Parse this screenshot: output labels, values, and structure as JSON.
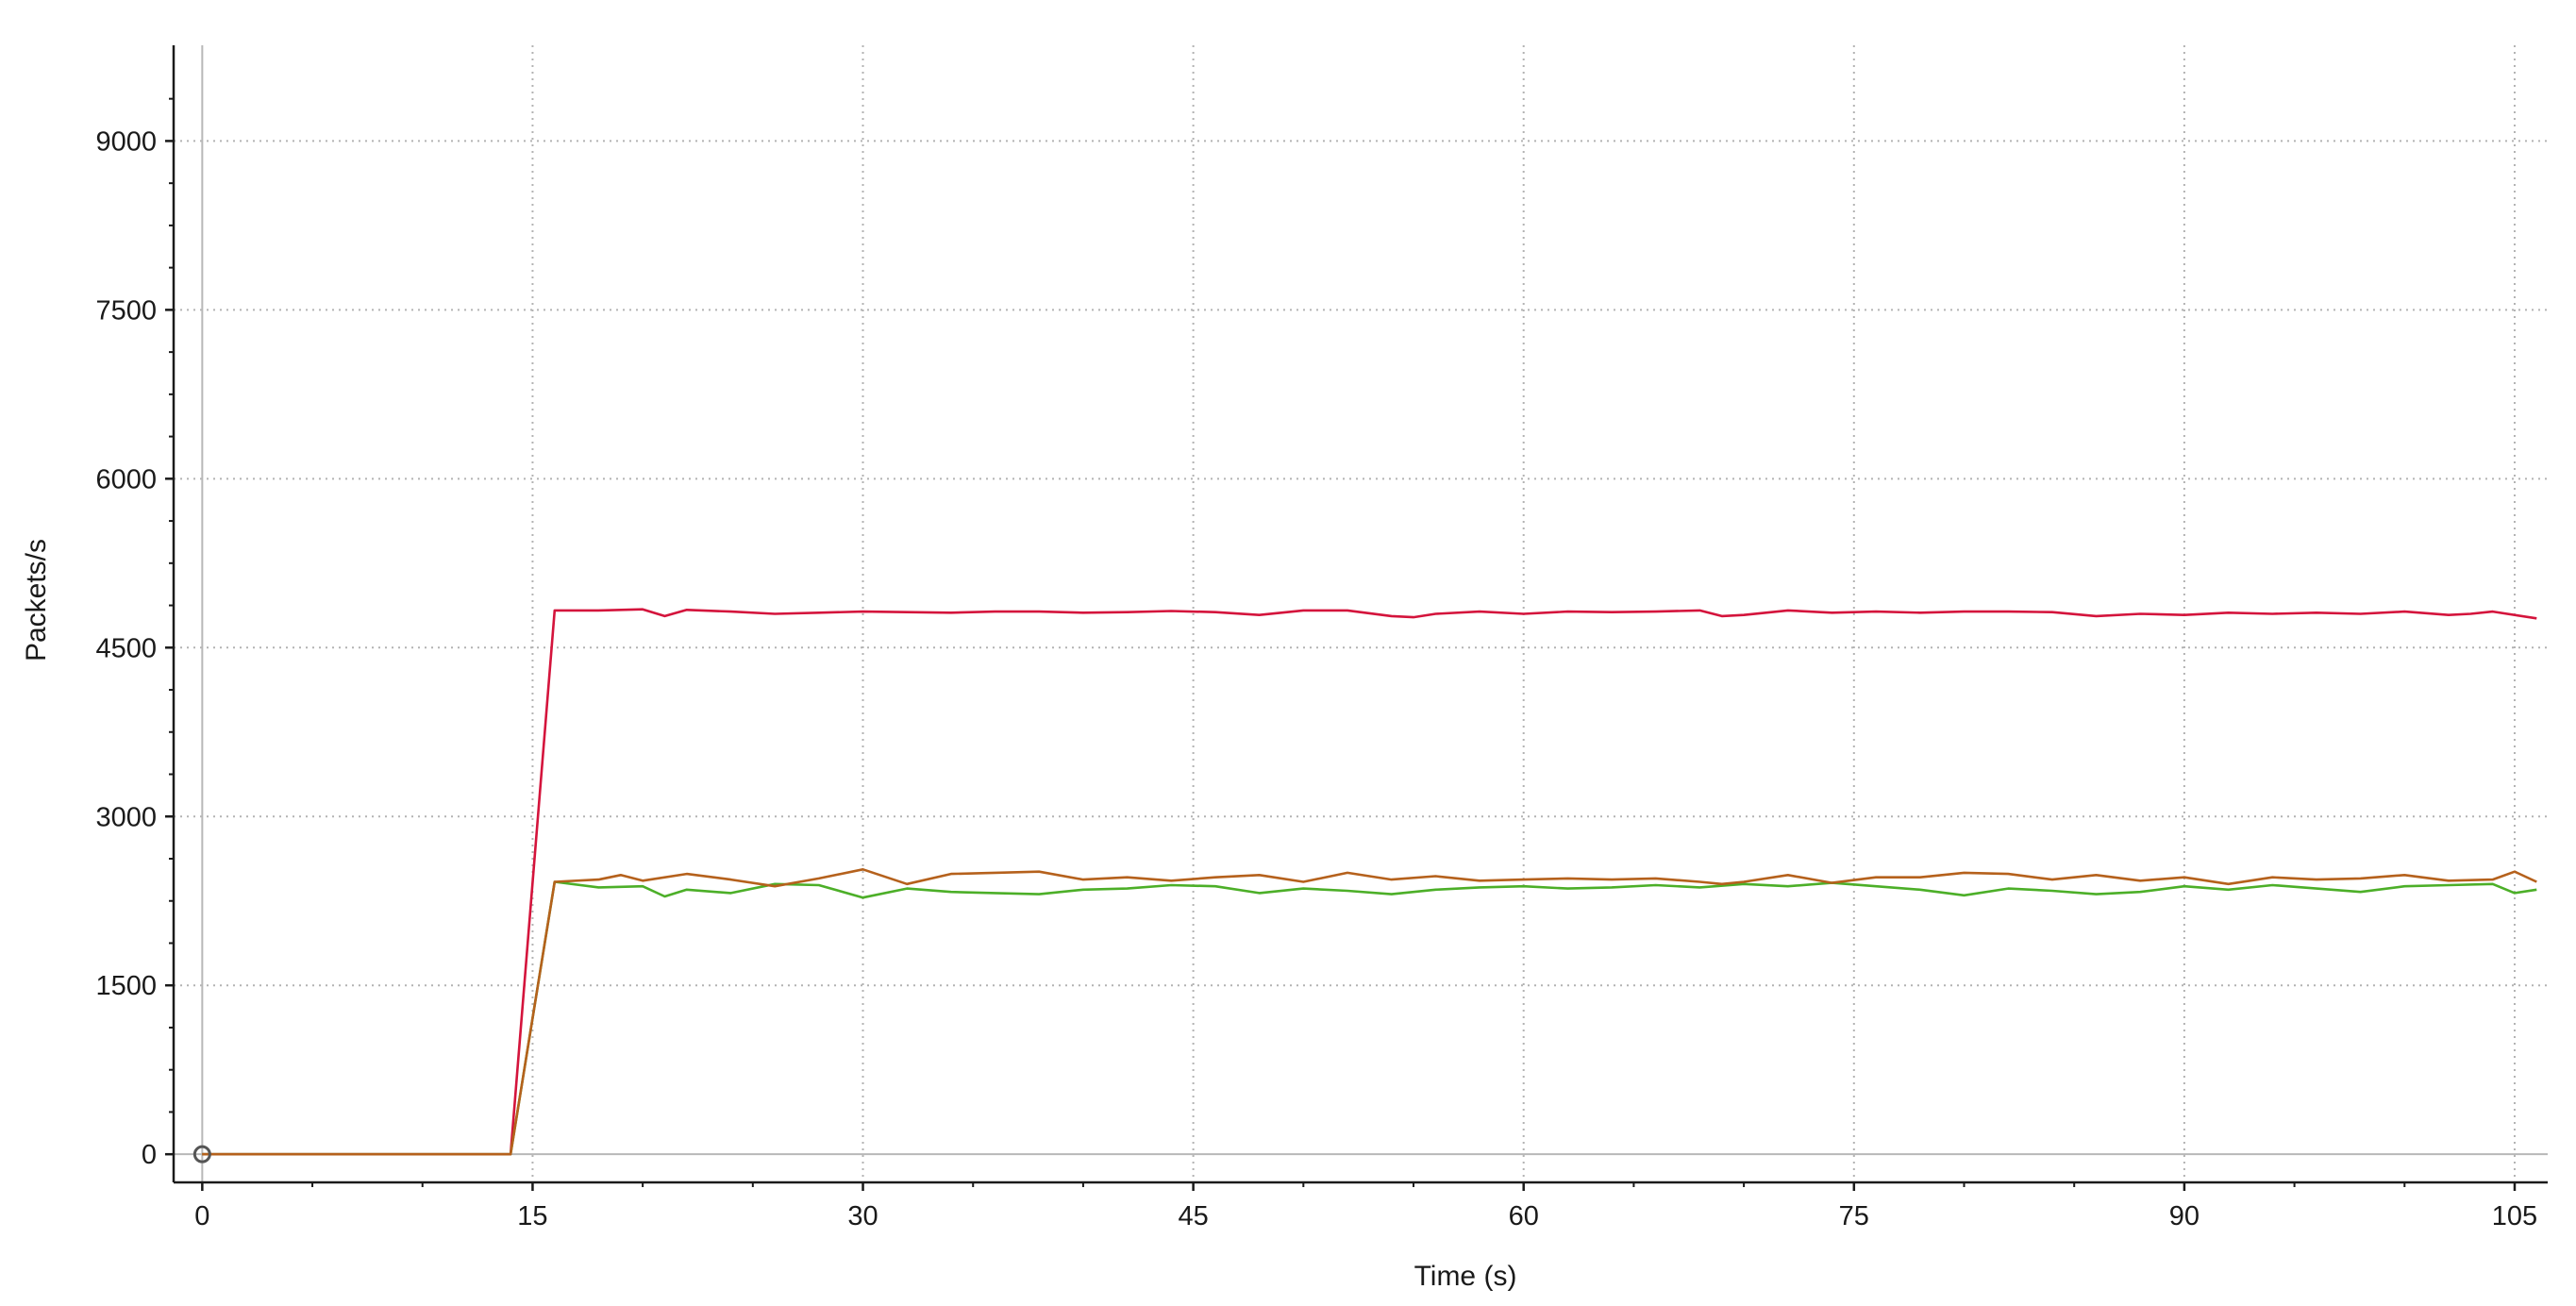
{
  "chart_data": {
    "type": "line",
    "title": "",
    "xlabel": "Time (s)",
    "ylabel": "Packets/s",
    "xlim": [
      -1.3,
      106.5
    ],
    "ylim": [
      -250,
      9850
    ],
    "x_ticks": [
      0,
      15,
      30,
      45,
      60,
      75,
      90,
      105
    ],
    "y_ticks": [
      0,
      1500,
      3000,
      4500,
      6000,
      7500,
      9000
    ],
    "grid": true,
    "grid_style": "dotted",
    "legend": "none",
    "series": [
      {
        "color": "#d4143c",
        "x": [
          0,
          14,
          16,
          18,
          20,
          21,
          22,
          24,
          26,
          28,
          30,
          32,
          34,
          36,
          38,
          40,
          42,
          44,
          46,
          48,
          50,
          52,
          54,
          55,
          56,
          58,
          60,
          62,
          64,
          66,
          68,
          69,
          70,
          72,
          74,
          76,
          78,
          80,
          82,
          84,
          86,
          88,
          90,
          92,
          94,
          96,
          98,
          100,
          102,
          103,
          104,
          106
        ],
        "y": [
          0,
          0,
          4830,
          4830,
          4840,
          4780,
          4835,
          4820,
          4800,
          4810,
          4820,
          4815,
          4810,
          4820,
          4820,
          4810,
          4815,
          4825,
          4815,
          4790,
          4830,
          4830,
          4780,
          4770,
          4800,
          4820,
          4800,
          4820,
          4815,
          4820,
          4830,
          4780,
          4790,
          4830,
          4810,
          4820,
          4810,
          4820,
          4820,
          4815,
          4780,
          4800,
          4790,
          4810,
          4800,
          4810,
          4800,
          4820,
          4790,
          4800,
          4820,
          4760
        ]
      },
      {
        "color": "#4caf28",
        "x": [
          0,
          14,
          16,
          18,
          20,
          21,
          22,
          24,
          26,
          28,
          30,
          32,
          34,
          36,
          38,
          40,
          42,
          44,
          46,
          48,
          50,
          52,
          54,
          56,
          58,
          60,
          62,
          64,
          66,
          68,
          70,
          72,
          74,
          76,
          78,
          80,
          82,
          84,
          86,
          88,
          90,
          92,
          94,
          96,
          98,
          100,
          102,
          104,
          105,
          106
        ],
        "y": [
          0,
          0,
          2420,
          2370,
          2380,
          2290,
          2350,
          2320,
          2400,
          2390,
          2280,
          2360,
          2330,
          2320,
          2310,
          2350,
          2360,
          2390,
          2380,
          2320,
          2360,
          2340,
          2310,
          2350,
          2370,
          2380,
          2360,
          2370,
          2390,
          2370,
          2400,
          2380,
          2410,
          2380,
          2350,
          2300,
          2360,
          2340,
          2310,
          2330,
          2380,
          2350,
          2390,
          2360,
          2330,
          2380,
          2390,
          2400,
          2320,
          2350
        ]
      },
      {
        "color": "#b5611c",
        "x": [
          0,
          14,
          16,
          18,
          19,
          20,
          22,
          24,
          26,
          28,
          30,
          32,
          34,
          36,
          38,
          40,
          42,
          44,
          46,
          48,
          50,
          52,
          54,
          56,
          58,
          60,
          62,
          64,
          66,
          68,
          69,
          70,
          72,
          74,
          76,
          78,
          80,
          82,
          84,
          86,
          88,
          90,
          92,
          94,
          96,
          98,
          100,
          102,
          104,
          105,
          106
        ],
        "y": [
          0,
          0,
          2420,
          2440,
          2480,
          2430,
          2490,
          2440,
          2380,
          2450,
          2530,
          2400,
          2490,
          2500,
          2510,
          2440,
          2460,
          2430,
          2460,
          2480,
          2420,
          2500,
          2440,
          2470,
          2430,
          2440,
          2450,
          2440,
          2450,
          2420,
          2400,
          2420,
          2480,
          2410,
          2460,
          2460,
          2500,
          2490,
          2440,
          2480,
          2430,
          2460,
          2400,
          2460,
          2440,
          2450,
          2480,
          2430,
          2440,
          2510,
          2420
        ]
      }
    ]
  }
}
